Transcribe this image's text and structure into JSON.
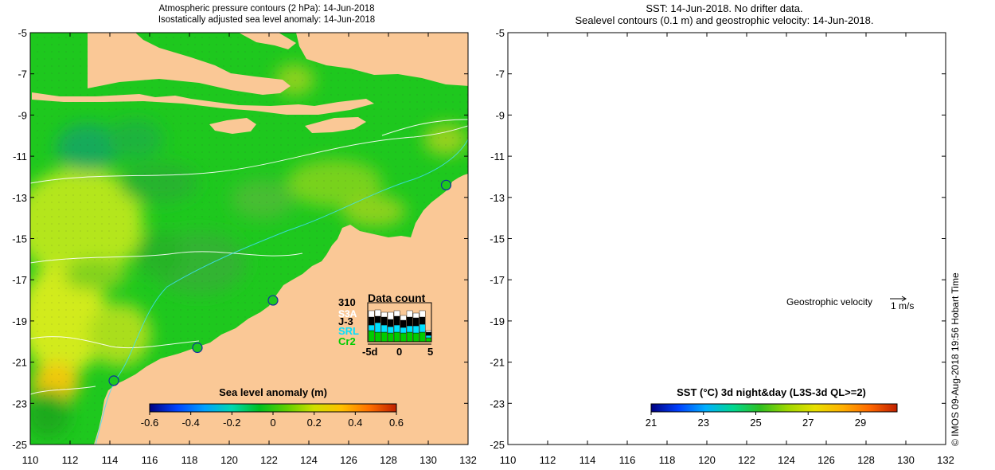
{
  "left_panel": {
    "title_line1": "Atmospheric pressure contours (2 hPa): 14-Jun-2018",
    "title_line2": "Isostatically adjusted sea level anomaly: 14-Jun-2018",
    "y_ticks": [
      "-5",
      "-7",
      "-9",
      "-11",
      "-13",
      "-15",
      "-17",
      "-19",
      "-21",
      "-23",
      "-25"
    ],
    "x_ticks": [
      "110",
      "112",
      "114",
      "116",
      "118",
      "120",
      "122",
      "124",
      "126",
      "128",
      "130",
      "132"
    ],
    "colorbar": {
      "label": "Sea level anomaly (m)",
      "ticks": [
        "-0.6",
        "-0.4",
        "-0.2",
        "0",
        "0.2",
        "0.4",
        "0.6"
      ],
      "colors": [
        "#000080",
        "#0044ff",
        "#00a0ff",
        "#00d8b0",
        "#00c020",
        "#60d000",
        "#d0e000",
        "#ffc000",
        "#ff7000",
        "#c02000"
      ]
    },
    "data_count": {
      "title": "Data count",
      "max_label": "310",
      "satellites": [
        {
          "name": "S3A",
          "color": "#ffffff"
        },
        {
          "name": "J-3",
          "color": "#000000"
        },
        {
          "name": "SRL",
          "color": "#00e0ff"
        },
        {
          "name": "Cr2",
          "color": "#00cc00"
        }
      ],
      "x_ticks": [
        "-5d",
        "0",
        "5"
      ]
    },
    "tide_gauges": [
      {
        "lon": 130.9,
        "lat": -12.4
      },
      {
        "lon": 122.2,
        "lat": -18.0
      },
      {
        "lon": 118.4,
        "lat": -20.3
      },
      {
        "lon": 114.2,
        "lat": -21.9
      }
    ]
  },
  "right_panel": {
    "title_line1": "SST: 14-Jun-2018. No drifter data.",
    "title_line2": "Sealevel contours (0.1 m) and geostrophic velocity: 14-Jun-2018.",
    "y_ticks": [
      "-5",
      "-7",
      "-9",
      "-11",
      "-13",
      "-15",
      "-17",
      "-19",
      "-21",
      "-23",
      "-25"
    ],
    "x_ticks": [
      "110",
      "112",
      "114",
      "116",
      "118",
      "120",
      "122",
      "124",
      "126",
      "128",
      "130",
      "132"
    ],
    "velocity_label": "Geostrophic velocity",
    "velocity_scale": "1 m/s",
    "colorbar": {
      "label": "SST (°C) 3d night&day (L3S-3d QL>=2)",
      "ticks": [
        "21",
        "23",
        "25",
        "27",
        "29"
      ],
      "colors": [
        "#000080",
        "#0040ff",
        "#00b0ff",
        "#00d890",
        "#30c020",
        "#a0d800",
        "#e8e000",
        "#ffb000",
        "#ff6800",
        "#c02000"
      ]
    }
  },
  "credit": "© IMOS 09-Aug-2018 19:56 Hobart Time",
  "colors": {
    "land": "#fac896",
    "sea_green": "#1ec81e",
    "sea_yellow": "#aadc1e",
    "sst_orange": "#f0a014",
    "sst_warm": "#dc5a0a"
  }
}
